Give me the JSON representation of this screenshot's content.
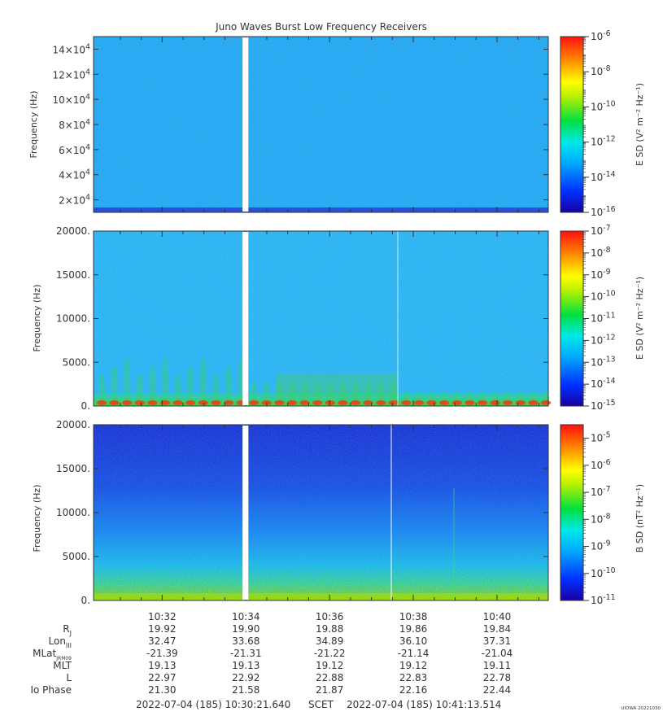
{
  "title": "Juno Waves Burst Low Frequency Receivers",
  "footer": {
    "start": "2022-07-04 (185) 10:30:21.640",
    "scet": "SCET",
    "end": "2022-07-04 (185) 10:41:13.514",
    "credit": "UIOWA 20221030"
  },
  "chart_data": [
    {
      "type": "heatmap",
      "name": "panel-1",
      "ylabel": "Frequency (Hz)",
      "ylim": [
        10000,
        150000
      ],
      "yticks": [
        20000,
        40000,
        60000,
        80000,
        100000,
        120000,
        140000
      ],
      "ytick_labels": [
        {
          "mant": "2×10",
          "exp": "4"
        },
        {
          "mant": "4×10",
          "exp": "4"
        },
        {
          "mant": "6×10",
          "exp": "4"
        },
        {
          "mant": "8×10",
          "exp": "4"
        },
        {
          "mant": "10×10",
          "exp": "4"
        },
        {
          "mant": "12×10",
          "exp": "4"
        },
        {
          "mant": "14×10",
          "exp": "4"
        }
      ],
      "colorbar": {
        "label": "E SD (V² m⁻² Hz⁻¹)",
        "scale": "log",
        "range_exp": [
          -16,
          -6
        ],
        "ticks": [
          {
            "mant": "10",
            "exp": "-6"
          },
          {
            "mant": "10",
            "exp": "-8"
          },
          {
            "mant": "10",
            "exp": "-10"
          },
          {
            "mant": "10",
            "exp": "-12"
          },
          {
            "mant": "10",
            "exp": "-14"
          },
          {
            "mant": "10",
            "exp": "-16"
          }
        ]
      },
      "colors": {
        "background": "#22a8f0",
        "base": "#1e5ee0"
      }
    },
    {
      "type": "heatmap",
      "name": "panel-2",
      "ylabel": "Frequency (Hz)",
      "ylim": [
        0,
        20000
      ],
      "yticks": [
        0,
        5000,
        10000,
        15000,
        20000
      ],
      "ytick_labels": [
        "0.",
        "5000.",
        "10000.",
        "15000.",
        "20000."
      ],
      "colorbar": {
        "label": "E SD (V² m⁻² Hz⁻¹)",
        "scale": "log",
        "range_exp": [
          -15,
          -7
        ],
        "ticks": [
          {
            "mant": "10",
            "exp": "-7"
          },
          {
            "mant": "10",
            "exp": "-8"
          },
          {
            "mant": "10",
            "exp": "-9"
          },
          {
            "mant": "10",
            "exp": "-10"
          },
          {
            "mant": "10",
            "exp": "-11"
          },
          {
            "mant": "10",
            "exp": "-12"
          },
          {
            "mant": "10",
            "exp": "-13"
          },
          {
            "mant": "10",
            "exp": "-14"
          },
          {
            "mant": "10",
            "exp": "-15"
          }
        ]
      },
      "colors": {
        "background": "#2ab0f0",
        "emission": "#3ad06a",
        "hot": "#e83a1a"
      }
    },
    {
      "type": "heatmap",
      "name": "panel-3",
      "ylabel": "Frequency (Hz)",
      "ylim": [
        0,
        20000
      ],
      "yticks": [
        0,
        5000,
        10000,
        15000,
        20000
      ],
      "ytick_labels": [
        "0.",
        "5000.",
        "10000.",
        "15000.",
        "20000."
      ],
      "colorbar": {
        "label": "B SD (nT² Hz⁻¹)",
        "scale": "log",
        "range_exp": [
          -11,
          -4.5
        ],
        "ticks": [
          {
            "mant": "10",
            "exp": "-5"
          },
          {
            "mant": "10",
            "exp": "-6"
          },
          {
            "mant": "10",
            "exp": "-7"
          },
          {
            "mant": "10",
            "exp": "-8"
          },
          {
            "mant": "10",
            "exp": "-9"
          },
          {
            "mant": "10",
            "exp": "-10"
          },
          {
            "mant": "10",
            "exp": "-11"
          }
        ]
      },
      "colors": {
        "top": "#1632d8",
        "middle": "#1e8cf0",
        "bottom": "#58e040"
      }
    }
  ],
  "time_axis": {
    "ticks": [
      "10:32",
      "10:34",
      "10:36",
      "10:38",
      "10:40"
    ],
    "tick_minutes": [
      32,
      34,
      36,
      38,
      40
    ],
    "xlim_minutes": [
      30.361,
      41.225
    ],
    "gap_minutes": [
      33.92,
      34.06
    ]
  },
  "ephemeris": [
    {
      "label": "R",
      "sub": "J",
      "values": [
        "19.92",
        "19.90",
        "19.88",
        "19.86",
        "19.84"
      ]
    },
    {
      "label": "Lon",
      "sub": "III",
      "values": [
        "32.47",
        "33.68",
        "34.89",
        "36.10",
        "37.31"
      ]
    },
    {
      "label": "MLat",
      "sub": "JRM09",
      "values": [
        "-21.39",
        "-21.31",
        "-21.22",
        "-21.14",
        "-21.04"
      ]
    },
    {
      "label": "MLT",
      "sub": "",
      "values": [
        "19.13",
        "19.13",
        "19.12",
        "19.12",
        "19.11"
      ]
    },
    {
      "label": "L",
      "sub": "",
      "values": [
        "22.97",
        "22.92",
        "22.88",
        "22.83",
        "22.78"
      ]
    },
    {
      "label": "Io Phase",
      "sub": "",
      "values": [
        "21.30",
        "21.58",
        "21.87",
        "22.16",
        "22.44"
      ]
    }
  ]
}
